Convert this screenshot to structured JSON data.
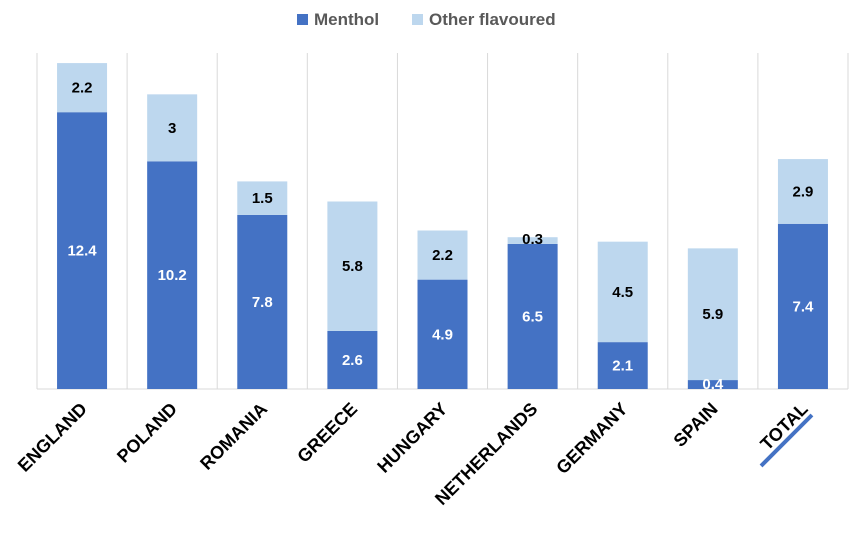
{
  "chart_data": {
    "type": "bar",
    "stacked": true,
    "categories": [
      "ENGLAND",
      "POLAND",
      "ROMANIA",
      "GREECE",
      "HUNGARY",
      "NETHERLANDS",
      "GERMANY",
      "SPAIN",
      "TOTAL"
    ],
    "series": [
      {
        "name": "Menthol",
        "color": "#4472c4",
        "label_color": "#ffffff",
        "values": [
          12.4,
          10.2,
          7.8,
          2.6,
          4.9,
          6.5,
          2.1,
          0.4,
          7.4
        ]
      },
      {
        "name": "Other flavoured",
        "color": "#bdd7ee",
        "label_color": "#000000",
        "values": [
          2.2,
          3,
          1.5,
          5.8,
          2.2,
          0.3,
          4.5,
          5.9,
          2.9
        ]
      }
    ],
    "ylim": [
      0,
      15.5
    ],
    "grid": "vertical separators",
    "legend": "top-center",
    "highlight_category": "TOTAL",
    "highlight_color": "#4472c4"
  }
}
